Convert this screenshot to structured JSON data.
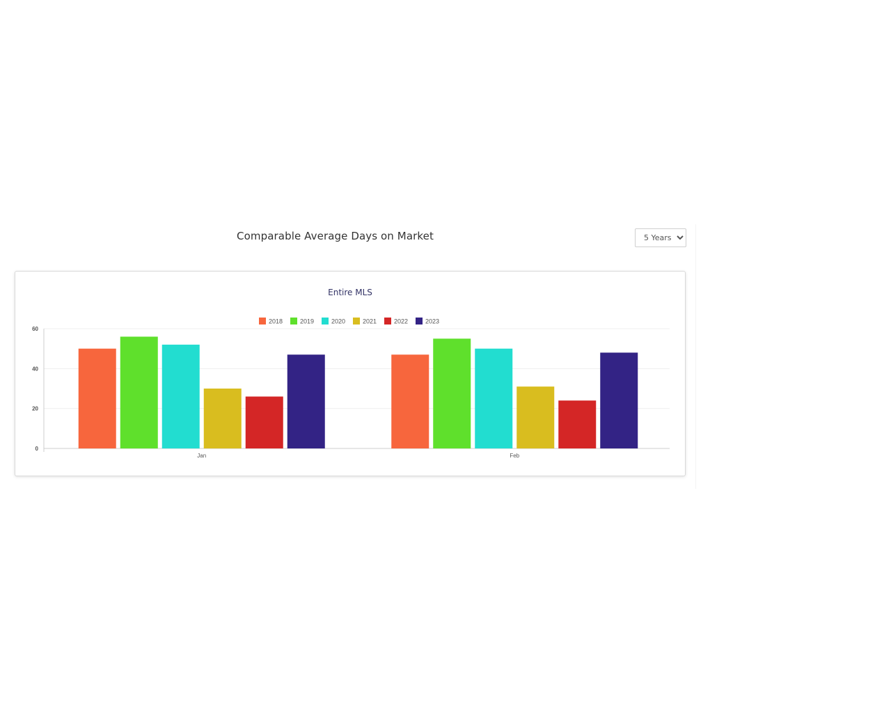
{
  "header": {
    "title": "Comparable Average Days on Market",
    "range_select": {
      "selected": "5 Years"
    }
  },
  "chart_data": {
    "type": "bar",
    "title": "Entire MLS",
    "categories": [
      "Jan",
      "Feb"
    ],
    "series": [
      {
        "name": "2018",
        "color": "#f7663d",
        "values": [
          50,
          47
        ]
      },
      {
        "name": "2019",
        "color": "#5fe02c",
        "values": [
          56,
          55
        ]
      },
      {
        "name": "2020",
        "color": "#22ddd0",
        "values": [
          52,
          50
        ]
      },
      {
        "name": "2021",
        "color": "#d9bd1f",
        "values": [
          30,
          31
        ]
      },
      {
        "name": "2022",
        "color": "#d42626",
        "values": [
          26,
          24
        ]
      },
      {
        "name": "2023",
        "color": "#332385",
        "values": [
          47,
          48
        ]
      }
    ],
    "ylim": [
      0,
      60
    ],
    "yticks": [
      0,
      20,
      40,
      60
    ],
    "legend_position": "top-center",
    "grid": true
  }
}
